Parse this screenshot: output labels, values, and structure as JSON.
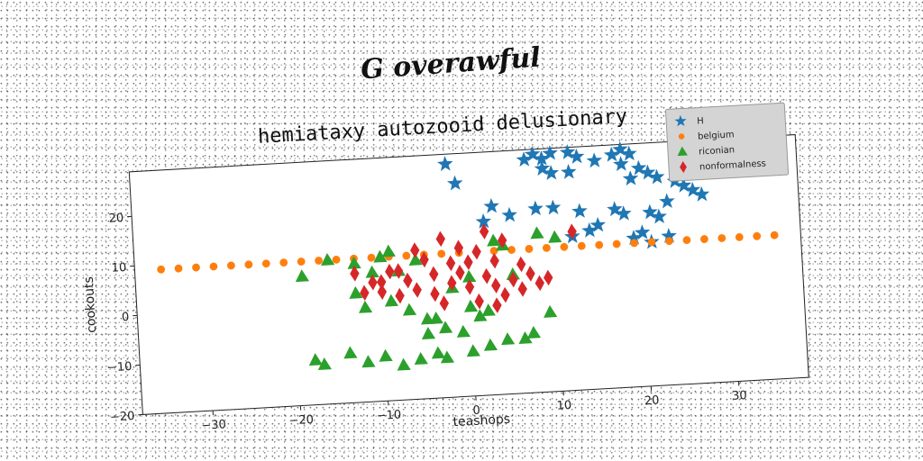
{
  "page_title": "G overawful",
  "chart_data": {
    "type": "scatter",
    "title": "hemiataxy autozooid delusionary",
    "xlabel": "teashops",
    "ylabel": "cookouts",
    "xlim": [
      -38,
      38
    ],
    "ylim": [
      -20,
      29
    ],
    "xticks": [
      -30,
      -20,
      -10,
      0,
      10,
      20,
      30
    ],
    "yticks": [
      -20,
      -10,
      0,
      10,
      20
    ],
    "grid": false,
    "legend_position": "top-right",
    "series": [
      {
        "name": "H",
        "marker": "star",
        "color": "#1f77b4",
        "points": [
          [
            -2,
            27
          ],
          [
            -1,
            23
          ],
          [
            7,
            27
          ],
          [
            8,
            28
          ],
          [
            9,
            27
          ],
          [
            10,
            28
          ],
          [
            12,
            28
          ],
          [
            13,
            27
          ],
          [
            15,
            26
          ],
          [
            9,
            25
          ],
          [
            10,
            24
          ],
          [
            12,
            24
          ],
          [
            17,
            27
          ],
          [
            18,
            28
          ],
          [
            19,
            27
          ],
          [
            18,
            25
          ],
          [
            20,
            24
          ],
          [
            21,
            23
          ],
          [
            19,
            22
          ],
          [
            22,
            22
          ],
          [
            24,
            21
          ],
          [
            25,
            20
          ],
          [
            26,
            19
          ],
          [
            27,
            18
          ],
          [
            3,
            18
          ],
          [
            2,
            15
          ],
          [
            5,
            16
          ],
          [
            8,
            17
          ],
          [
            10,
            17
          ],
          [
            13,
            16
          ],
          [
            17,
            16
          ],
          [
            18,
            15
          ],
          [
            21,
            15
          ],
          [
            22,
            14
          ],
          [
            23,
            17
          ],
          [
            20,
            11
          ],
          [
            19,
            10
          ],
          [
            21,
            9
          ],
          [
            23,
            10
          ],
          [
            15,
            13
          ],
          [
            14,
            12
          ],
          [
            12,
            11
          ]
        ]
      },
      {
        "name": "belgium",
        "marker": "circle",
        "color": "#ff7f0e",
        "points": [
          [
            -35,
            9
          ],
          [
            -33,
            9
          ],
          [
            -31,
            9
          ],
          [
            -29,
            9
          ],
          [
            -27,
            9
          ],
          [
            -25,
            9
          ],
          [
            -23,
            9
          ],
          [
            -21,
            9
          ],
          [
            -19,
            9
          ],
          [
            -17,
            9
          ],
          [
            -15,
            9
          ],
          [
            -13,
            9
          ],
          [
            -11,
            9
          ],
          [
            -9,
            9
          ],
          [
            -7,
            9
          ],
          [
            -5,
            9
          ],
          [
            -3,
            9
          ],
          [
            -1,
            9
          ],
          [
            1,
            9
          ],
          [
            3,
            9
          ],
          [
            5,
            9
          ],
          [
            7,
            9
          ],
          [
            9,
            9
          ],
          [
            11,
            9
          ],
          [
            13,
            9
          ],
          [
            15,
            9
          ],
          [
            17,
            9
          ],
          [
            19,
            9
          ],
          [
            21,
            9
          ],
          [
            23,
            9
          ],
          [
            25,
            9
          ],
          [
            27,
            9
          ],
          [
            29,
            9
          ],
          [
            31,
            9
          ],
          [
            33,
            9
          ],
          [
            35,
            9
          ]
        ]
      },
      {
        "name": "riconian",
        "marker": "triangle",
        "color": "#2ca02c",
        "points": [
          [
            -19,
            6
          ],
          [
            -16,
            9
          ],
          [
            -13,
            8
          ],
          [
            -13,
            2
          ],
          [
            -12,
            -1
          ],
          [
            -11,
            6
          ],
          [
            -10,
            9
          ],
          [
            -9,
            10
          ],
          [
            -9,
            0
          ],
          [
            -8,
            6
          ],
          [
            -7,
            -2
          ],
          [
            -6,
            8
          ],
          [
            -5,
            -4
          ],
          [
            -5,
            -7
          ],
          [
            -4,
            -4
          ],
          [
            -3,
            -6
          ],
          [
            -2,
            2
          ],
          [
            -1,
            -7
          ],
          [
            0,
            4
          ],
          [
            0,
            -2
          ],
          [
            1,
            -4
          ],
          [
            2,
            -3
          ],
          [
            3,
            11
          ],
          [
            4,
            10
          ],
          [
            5,
            4
          ],
          [
            6,
            -9
          ],
          [
            7,
            -8
          ],
          [
            8,
            12
          ],
          [
            9,
            -4
          ],
          [
            10,
            11
          ],
          [
            -18,
            -11
          ],
          [
            -17,
            -12
          ],
          [
            -14,
            -10
          ],
          [
            -12,
            -12
          ],
          [
            -10,
            -11
          ],
          [
            -8,
            -13
          ],
          [
            -6,
            -12
          ],
          [
            -4,
            -11
          ],
          [
            -3,
            -12
          ],
          [
            0,
            -11
          ],
          [
            2,
            -10
          ],
          [
            4,
            -9
          ]
        ]
      },
      {
        "name": "nonformalness",
        "marker": "diamond",
        "color": "#d62728",
        "points": [
          [
            -13,
            6
          ],
          [
            -11,
            4
          ],
          [
            -10,
            2
          ],
          [
            -9,
            6
          ],
          [
            -8,
            1
          ],
          [
            -7,
            4
          ],
          [
            -6,
            10
          ],
          [
            -6,
            2
          ],
          [
            -5,
            8
          ],
          [
            -4,
            5
          ],
          [
            -4,
            1
          ],
          [
            -3,
            12
          ],
          [
            -3,
            -1
          ],
          [
            -2,
            7
          ],
          [
            -2,
            3
          ],
          [
            -1,
            10
          ],
          [
            0,
            7
          ],
          [
            0,
            2
          ],
          [
            1,
            9
          ],
          [
            1,
            -1
          ],
          [
            2,
            13
          ],
          [
            2,
            4
          ],
          [
            3,
            2
          ],
          [
            3,
            7
          ],
          [
            4,
            11
          ],
          [
            4,
            0
          ],
          [
            5,
            3
          ],
          [
            6,
            6
          ],
          [
            6,
            1
          ],
          [
            7,
            4
          ],
          [
            8,
            2
          ],
          [
            -12,
            2
          ],
          [
            -10,
            4
          ],
          [
            -8,
            6
          ],
          [
            3,
            -2
          ],
          [
            12,
            12
          ],
          [
            9,
            3
          ],
          [
            -1,
            5
          ]
        ]
      }
    ]
  }
}
